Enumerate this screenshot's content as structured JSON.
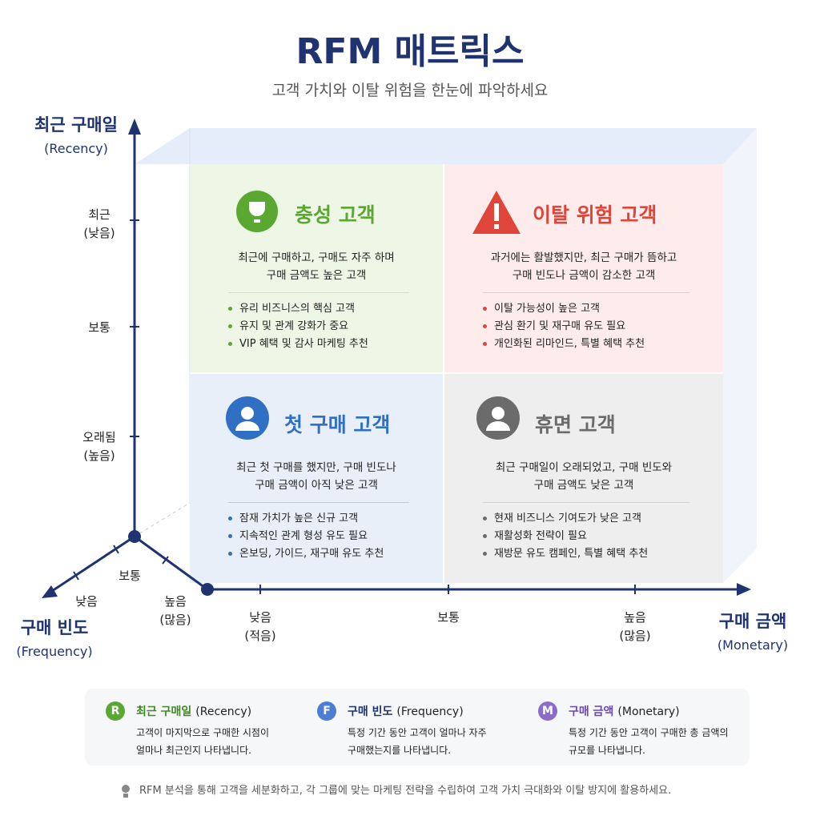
{
  "header": {
    "title": "RFM 매트릭스",
    "subtitle": "고객 가치와 이탈 위험을 한눈에 파악하세요"
  },
  "axes": {
    "recency": {
      "label": "최근 구매일",
      "sublabel": "(Recency)",
      "ticks": [
        [
          "최근",
          "(낮음)"
        ],
        [
          "보통"
        ],
        [
          "오래됨",
          "(높음)"
        ]
      ]
    },
    "frequency": {
      "label": "구매 빈도",
      "sublabel": "(Frequency)",
      "ticks": [
        [
          "낮음"
        ],
        [
          "보통"
        ],
        [
          "높음",
          "(많음)"
        ]
      ]
    },
    "monetary": {
      "label": "구매 금액",
      "sublabel": "(Monetary)",
      "ticks": [
        [
          "낮음",
          "(적음)"
        ],
        [
          "보통"
        ],
        [
          "높음",
          "(많음)"
        ]
      ]
    }
  },
  "quadrants": [
    {
      "title": "충성 고객",
      "description": [
        "최근에 구매하고, 구매도 자주 하며",
        "구매 금액도 높은 고객"
      ],
      "bullets": [
        "유리 비즈니스의 핵심 고객",
        "유지 및 관계 강화가 중요",
        "VIP 혜택 및 감사 마케팅 추천"
      ]
    },
    {
      "title": "이탈 위험 고객",
      "description": [
        "과거에는 활발했지만, 최근 구매가 뜸하고",
        "구매 빈도나 금액이 감소한 고객"
      ],
      "bullets": [
        "이탈 가능성이 높은 고객",
        "관심 환기 및 재구매 유도 필요",
        "개인화된 리마인드, 특별 혜택 추천"
      ]
    },
    {
      "title": "첫 구매 고객",
      "description": [
        "최근 첫 구매를 했지만, 구매 빈도나",
        "구매 금액이 아직 낮은 고객"
      ],
      "bullets": [
        "잠재 가치가 높은 신규 고객",
        "지속적인 관계 형성 유도 필요",
        "온보딩, 가이드, 재구매 유도 추천"
      ]
    },
    {
      "title": "휴면 고객",
      "description": [
        "최근 구매일이 오래되었고, 구매 빈도와",
        "구매 금액도 낮은 고객"
      ],
      "bullets": [
        "현재 비즈니스 기여도가 낮은 고객",
        "재활성화 전략이 필요",
        "재방문 유도 캠페인, 특별 혜택 추천"
      ]
    }
  ],
  "legend": [
    {
      "letter": "R",
      "name": "최근 구매일",
      "en": "(Recency)",
      "description": [
        "고객이 마지막으로 구매한 시점이",
        "얼마나 최근인지 나타냅니다."
      ]
    },
    {
      "letter": "F",
      "name": "구매 빈도",
      "en": "(Frequency)",
      "description": [
        "특정 기간 동안 고객이 얼마나 자주",
        "구매했는지를 나타냅니다."
      ]
    },
    {
      "letter": "M",
      "name": "구매 금액",
      "en": "(Monetary)",
      "description": [
        "특정 기간 동안 고객이 구매한 총 금액의",
        "규모를 나타냅니다."
      ]
    }
  ],
  "footer": {
    "note": "RFM 분석을 통해 고객을 세분화하고, 각 그룹에 맞는 마케팅 전략을 수립하여 고객 가치 극대화와 이탈 방지에 활용하세요."
  }
}
